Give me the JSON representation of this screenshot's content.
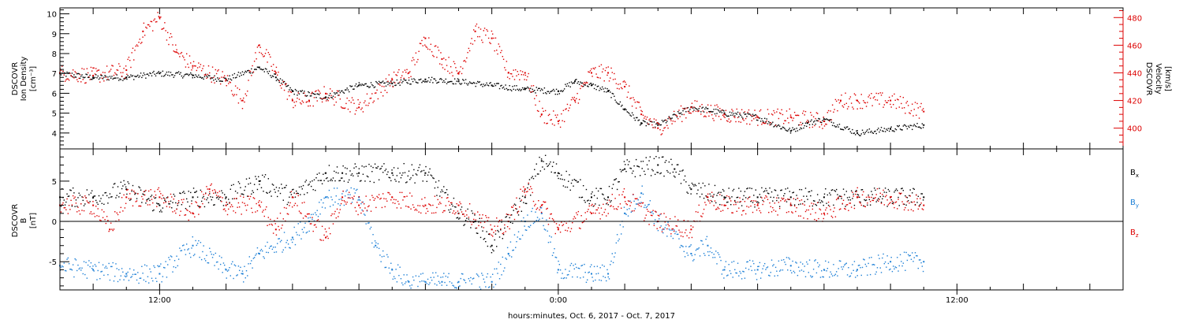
{
  "colors": {
    "black": "#000000",
    "red": "#dd0000",
    "blue": "#1c7fd6",
    "axis": "#000000"
  },
  "xaxis_label": "hours:minutes, Oct.  6, 2017 - Oct.  7, 2017",
  "chart_data": [
    {
      "type": "scatter",
      "title": "",
      "ylabel_left": [
        "DSCOVR",
        "Ion Density",
        "[cm⁻³]"
      ],
      "ylabel_right": [
        "DSCOVR",
        "Velocity",
        "[km/s]"
      ],
      "x_unit": "hours since Oct 6 2017 00:00",
      "xlim": [
        9.0,
        41.0
      ],
      "xticks": [
        {
          "x": 12,
          "label": "12:00"
        },
        {
          "x": 24,
          "label": "0:00"
        },
        {
          "x": 36,
          "label": "12:00"
        }
      ],
      "ylim_left": [
        3.2,
        10.3
      ],
      "yticks_left": [
        4,
        5,
        6,
        7,
        8,
        9,
        10
      ],
      "ylim_right": [
        385,
        487
      ],
      "yticks_right": [
        400,
        420,
        440,
        460,
        480
      ],
      "series": [
        {
          "axis": "left",
          "color": "black",
          "x": [
            9.0,
            10.0,
            11.0,
            12.0,
            13.0,
            14.0,
            15.0,
            15.5,
            16.0,
            17.0,
            18.0,
            19.0,
            20.0,
            21.0,
            22.0,
            23.0,
            24.0,
            24.5,
            25.0,
            25.5,
            26.0,
            26.5,
            27.0,
            28.0,
            29.0,
            30.0,
            31.0,
            31.5,
            32.0,
            33.0,
            34.0,
            35.0
          ],
          "y": [
            7.0,
            6.8,
            6.8,
            7.0,
            6.9,
            6.7,
            7.3,
            6.8,
            6.1,
            5.8,
            6.4,
            6.5,
            6.7,
            6.6,
            6.4,
            6.2,
            6.1,
            6.6,
            6.4,
            6.1,
            5.2,
            4.5,
            4.4,
            5.3,
            5.0,
            4.8,
            4.1,
            4.5,
            4.7,
            4.0,
            4.2,
            4.4
          ]
        },
        {
          "axis": "right",
          "color": "red",
          "x": [
            9.0,
            10.0,
            11.0,
            11.5,
            12.0,
            12.5,
            13.0,
            14.0,
            14.5,
            15.0,
            15.5,
            16.0,
            16.5,
            17.0,
            18.0,
            19.0,
            19.5,
            20.0,
            20.5,
            21.0,
            21.5,
            22.0,
            22.5,
            23.0,
            23.5,
            24.0,
            24.5,
            25.0,
            25.5,
            26.0,
            26.5,
            27.0,
            28.0,
            29.0,
            30.0,
            31.0,
            32.0,
            32.5,
            33.0,
            34.0,
            35.0
          ],
          "y": [
            440,
            438,
            442,
            470,
            480,
            455,
            445,
            435,
            420,
            460,
            440,
            420,
            420,
            425,
            415,
            435,
            440,
            465,
            450,
            440,
            470,
            465,
            440,
            440,
            410,
            405,
            420,
            440,
            440,
            430,
            410,
            400,
            415,
            410,
            408,
            408,
            405,
            420,
            420,
            420,
            412
          ]
        }
      ]
    },
    {
      "type": "scatter",
      "title": "",
      "ylabel_left": [
        "DSCOVR",
        "B",
        "[nT]"
      ],
      "xlim": [
        9.0,
        41.0
      ],
      "ylim": [
        -8.5,
        9.0
      ],
      "yticks": [
        -5,
        0,
        5
      ],
      "zero_line": true,
      "legend": [
        {
          "label": "Bx",
          "color": "black"
        },
        {
          "label": "By",
          "color": "blue"
        },
        {
          "label": "Bz",
          "color": "red"
        }
      ],
      "series": [
        {
          "name": "Bx",
          "color": "black",
          "x": [
            9.0,
            10.0,
            11.0,
            12.0,
            13.0,
            14.0,
            15.0,
            16.0,
            17.0,
            17.5,
            18.0,
            19.0,
            20.0,
            21.0,
            21.5,
            22.0,
            23.0,
            23.5,
            24.0,
            25.0,
            25.5,
            26.0,
            27.0,
            27.5,
            28.0,
            29.0,
            30.0,
            31.0,
            32.0,
            33.0,
            34.0,
            35.0
          ],
          "y": [
            3,
            3,
            4,
            2,
            3,
            3,
            5,
            3,
            6,
            6,
            6,
            6,
            6,
            1,
            0,
            -3,
            3,
            7.5,
            6,
            3,
            3,
            6.5,
            7,
            6.5,
            4,
            3,
            3,
            3,
            3,
            3,
            3,
            3
          ]
        },
        {
          "name": "By",
          "color": "blue",
          "x": [
            9.0,
            10.0,
            11.0,
            12.0,
            13.0,
            14.0,
            14.5,
            15.0,
            16.0,
            16.5,
            17.0,
            18.0,
            18.5,
            19.0,
            19.5,
            20.0,
            20.5,
            21.0,
            22.0,
            22.5,
            23.0,
            23.5,
            24.0,
            25.0,
            25.5,
            26.0,
            26.5,
            27.0,
            28.0,
            28.5,
            29.0,
            30.0,
            31.0,
            32.0,
            33.0,
            34.0,
            35.0
          ],
          "y": [
            -5.5,
            -6.0,
            -6.5,
            -6.5,
            -3,
            -6,
            -6.5,
            -4,
            -2,
            0,
            3,
            3,
            -3,
            -6,
            -7.5,
            -7.5,
            -7.5,
            -7.5,
            -7.5,
            -4,
            0,
            1,
            -6,
            -6.5,
            -6.5,
            1,
            3.5,
            0,
            -4,
            -3,
            -6,
            -6,
            -5.5,
            -6,
            -6,
            -5,
            -5
          ]
        },
        {
          "name": "Bz",
          "color": "red",
          "x": [
            9.0,
            10.0,
            10.5,
            11.0,
            12.0,
            13.0,
            13.5,
            14.0,
            15.0,
            15.5,
            16.0,
            17.0,
            17.5,
            18.0,
            19.0,
            20.0,
            21.0,
            22.0,
            22.5,
            23.0,
            23.5,
            24.0,
            25.0,
            26.0,
            27.0,
            28.0,
            28.5,
            29.0,
            30.0,
            31.0,
            32.0,
            33.0,
            34.0,
            35.0
          ],
          "y": [
            2,
            2,
            -1,
            3,
            3,
            1,
            4,
            2,
            2,
            -1,
            3,
            -2,
            3,
            2,
            3,
            2,
            2,
            -1,
            0,
            4,
            2,
            -1,
            1,
            3,
            0,
            -1,
            3,
            2,
            2,
            2,
            1,
            3,
            3,
            2
          ]
        }
      ]
    }
  ]
}
